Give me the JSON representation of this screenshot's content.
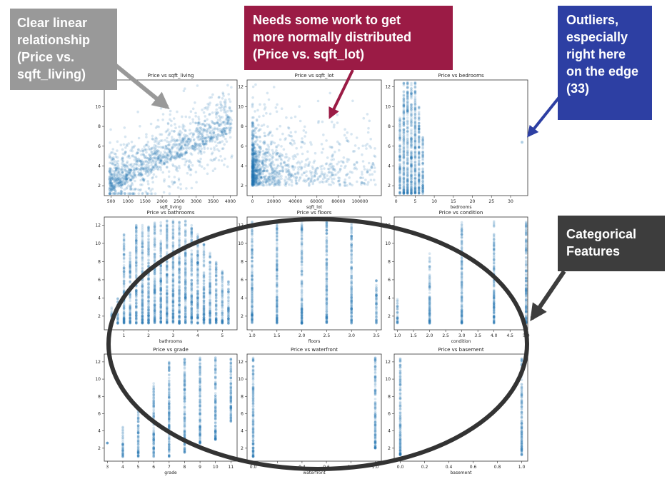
{
  "callouts": {
    "linear": {
      "lines": [
        "Clear linear",
        "relationship",
        "(Price vs.",
        "sqft_living)"
      ],
      "color": "#999999"
    },
    "normal": {
      "lines": [
        "Needs some work to get",
        "more normally distributed",
        "(Price vs. sqft_lot)"
      ],
      "color": "#9b1b45"
    },
    "outliers": {
      "lines": [
        "Outliers,",
        "especially",
        "right here",
        "on the edge",
        "(33)"
      ],
      "color": "#2d3fa3"
    },
    "categorical": {
      "lines": [
        "Categorical",
        "Features"
      ],
      "color": "#3d3d3d"
    }
  },
  "colors": {
    "points": "#1f77b4",
    "ellipse": "#333333",
    "arrow_linear": "#999999",
    "arrow_normal": "#9b1b45",
    "arrow_outliers": "#2d3fa3",
    "arrow_categorical": "#3d3d3d"
  },
  "chart_data": [
    {
      "type": "scatter",
      "title": "Price vs sqft_living",
      "xlabel": "sqft_living",
      "ylabel": "",
      "xlim": [
        300,
        4200
      ],
      "ylim": [
        1,
        12.7
      ],
      "xticks": [
        500,
        1000,
        1500,
        2000,
        2500,
        3000,
        3500,
        4000
      ],
      "yticks": [
        2,
        4,
        6,
        8,
        10,
        12
      ],
      "x_tick_labels": [
        "500",
        "1000",
        "1500",
        "2000",
        "2500",
        "3000",
        "3500",
        "4000"
      ],
      "y_tick_labels": [
        "2",
        "4",
        "6",
        "8",
        "10",
        "12"
      ],
      "distribution": {
        "kind": "correlated",
        "x_range": [
          450,
          4050
        ],
        "slope": 0.0017,
        "intercept": 0.6,
        "spread": 1.6
      }
    },
    {
      "type": "scatter",
      "title": "Price vs sqft_lot",
      "xlabel": "sqft_lot",
      "ylabel": "",
      "xlim": [
        -5000,
        120000
      ],
      "ylim": [
        1,
        12.7
      ],
      "xticks": [
        0,
        20000,
        40000,
        60000,
        80000,
        100000
      ],
      "yticks": [
        2,
        4,
        6,
        8,
        10,
        12
      ],
      "x_tick_labels": [
        "0",
        "20000",
        "40000",
        "60000",
        "80000",
        "100000"
      ],
      "y_tick_labels": [
        "2",
        "4",
        "6",
        "8",
        "10",
        "12"
      ],
      "distribution": {
        "kind": "skewed",
        "x_max": 115000
      }
    },
    {
      "type": "scatter",
      "title": "Price vs bedrooms",
      "xlabel": "bedrooms",
      "ylabel": "",
      "xlim": [
        -0.5,
        34.5
      ],
      "ylim": [
        1,
        12.7
      ],
      "xticks": [
        0,
        5,
        10,
        15,
        20,
        25,
        30
      ],
      "yticks": [
        2,
        4,
        6,
        8,
        10,
        12
      ],
      "x_tick_labels": [
        "0",
        "5",
        "10",
        "15",
        "20",
        "25",
        "30"
      ],
      "y_tick_labels": [
        "2",
        "4",
        "6",
        "8",
        "10",
        "12"
      ],
      "distribution": {
        "kind": "categorical",
        "x": [
          1,
          2,
          3,
          4,
          5,
          6,
          7
        ],
        "tops": [
          9,
          12.5,
          12.5,
          12.5,
          12.5,
          10,
          7
        ],
        "outliers": [
          [
            33,
            6.4
          ]
        ]
      }
    },
    {
      "type": "scatter",
      "title": "Price vs bathrooms",
      "xlabel": "bathrooms",
      "ylabel": "",
      "xlim": [
        0.2,
        5.6
      ],
      "ylim": [
        0.5,
        12.9
      ],
      "xticks": [
        1,
        2,
        3,
        4,
        5
      ],
      "yticks": [
        2,
        4,
        6,
        8,
        10,
        12
      ],
      "x_tick_labels": [
        "1",
        "2",
        "3",
        "4",
        "5"
      ],
      "y_tick_labels": [
        "2",
        "4",
        "6",
        "8",
        "10",
        "12"
      ],
      "distribution": {
        "kind": "categorical",
        "x": [
          0.5,
          0.75,
          1,
          1.25,
          1.5,
          1.75,
          2,
          2.25,
          2.5,
          2.75,
          3,
          3.25,
          3.5,
          3.75,
          4,
          4.25,
          4.5,
          4.75,
          5,
          5.25
        ],
        "tops": [
          3,
          4,
          11,
          9,
          12,
          12,
          12,
          12.5,
          12.5,
          12.5,
          12.5,
          12.5,
          12.5,
          12,
          11,
          10,
          9,
          8,
          7,
          6
        ]
      }
    },
    {
      "type": "scatter",
      "title": "Price vs floors",
      "xlabel": "floors",
      "ylabel": "",
      "xlim": [
        0.9,
        3.6
      ],
      "ylim": [
        0.5,
        12.9
      ],
      "xticks": [
        1,
        1.5,
        2,
        2.5,
        3,
        3.5
      ],
      "yticks": [
        2,
        4,
        6,
        8,
        10,
        12
      ],
      "x_tick_labels": [
        "1.0",
        "1.5",
        "2.0",
        "2.5",
        "3.0",
        "3.5"
      ],
      "y_tick_labels": [
        "2",
        "4",
        "6",
        "8",
        "10",
        "12"
      ],
      "distribution": {
        "kind": "categorical",
        "x": [
          1,
          1.5,
          2,
          2.5,
          3,
          3.5
        ],
        "tops": [
          12.5,
          12.5,
          12.5,
          12.5,
          12.5,
          6
        ]
      }
    },
    {
      "type": "scatter",
      "title": "Price vs condition",
      "xlabel": "condition",
      "ylabel": "",
      "xlim": [
        0.9,
        5.05
      ],
      "ylim": [
        0.5,
        12.9
      ],
      "xticks": [
        1,
        1.5,
        2,
        2.5,
        3,
        3.5,
        4,
        4.5,
        5
      ],
      "yticks": [
        2,
        4,
        6,
        8,
        10,
        12
      ],
      "x_tick_labels": [
        "1.0",
        "1.5",
        "2.0",
        "2.5",
        "3.0",
        "3.5",
        "4.0",
        "4.5",
        "5.0"
      ],
      "y_tick_labels": [
        "2",
        "4",
        "6",
        "8",
        "10",
        "12"
      ],
      "distribution": {
        "kind": "categorical",
        "x": [
          1,
          2,
          3,
          4,
          5
        ],
        "tops": [
          4,
          9,
          12.5,
          12.5,
          12.5
        ]
      }
    },
    {
      "type": "scatter",
      "title": "Price vs grade",
      "xlabel": "grade",
      "ylabel": "",
      "xlim": [
        2.8,
        11.4
      ],
      "ylim": [
        0.5,
        12.9
      ],
      "xticks": [
        3,
        4,
        5,
        6,
        7,
        8,
        9,
        10,
        11
      ],
      "yticks": [
        2,
        4,
        6,
        8,
        10,
        12
      ],
      "x_tick_labels": [
        "3",
        "4",
        "5",
        "6",
        "7",
        "8",
        "9",
        "10",
        "11"
      ],
      "y_tick_labels": [
        "2",
        "4",
        "6",
        "8",
        "10",
        "12"
      ],
      "distribution": {
        "kind": "categorical",
        "x": [
          3,
          4,
          5,
          6,
          7,
          8,
          9,
          10,
          11
        ],
        "bottoms": [
          2.6,
          1,
          1,
          1,
          1,
          1.5,
          2.5,
          3,
          5
        ],
        "tops": [
          2.6,
          4.5,
          7,
          9.5,
          12,
          12.5,
          12.5,
          12.5,
          12.5
        ]
      }
    },
    {
      "type": "scatter",
      "title": "Price vs waterfront",
      "xlabel": "waterfront",
      "ylabel": "",
      "xlim": [
        -0.05,
        1.05
      ],
      "ylim": [
        0.5,
        12.9
      ],
      "xticks": [
        0,
        0.2,
        0.4,
        0.6,
        0.8,
        1
      ],
      "yticks": [
        2,
        4,
        6,
        8,
        10,
        12
      ],
      "x_tick_labels": [
        "0.0",
        "0.2",
        "0.4",
        "0.6",
        "0.8",
        "1.0"
      ],
      "y_tick_labels": [
        "2",
        "4",
        "6",
        "8",
        "10",
        "12"
      ],
      "distribution": {
        "kind": "categorical",
        "x": [
          0,
          1
        ],
        "bottoms": [
          1,
          2
        ],
        "tops": [
          12.5,
          12.5
        ]
      }
    },
    {
      "type": "scatter",
      "title": "Price vs basement",
      "xlabel": "basement",
      "ylabel": "",
      "xlim": [
        -0.05,
        1.05
      ],
      "ylim": [
        0.5,
        12.9
      ],
      "xticks": [
        0,
        0.2,
        0.4,
        0.6,
        0.8,
        1
      ],
      "yticks": [
        2,
        4,
        6,
        8,
        10,
        12
      ],
      "x_tick_labels": [
        "0.0",
        "0.2",
        "0.4",
        "0.6",
        "0.8",
        "1.0"
      ],
      "y_tick_labels": [
        "2",
        "4",
        "6",
        "8",
        "10",
        "12"
      ],
      "distribution": {
        "kind": "categorical",
        "x": [
          0,
          1
        ],
        "tops": [
          12.5,
          12.5
        ]
      }
    }
  ]
}
